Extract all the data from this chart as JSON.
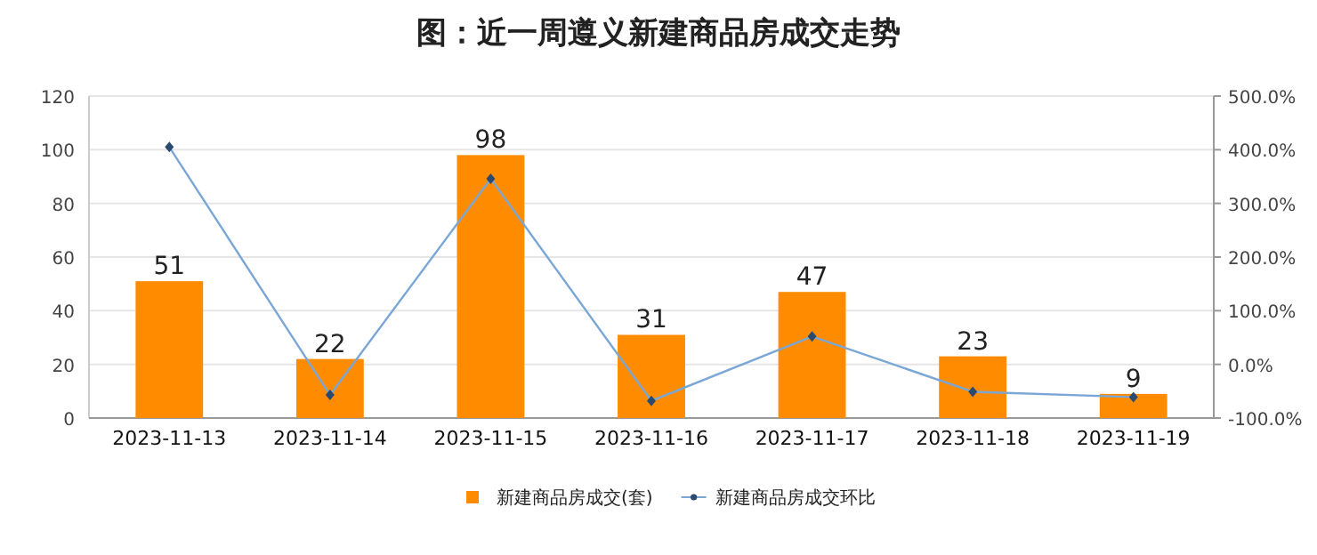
{
  "chart_data": {
    "type": "bar",
    "title": "图：近一周遵义新建商品房成交走势",
    "categories": [
      "2023-11-13",
      "2023-11-14",
      "2023-11-15",
      "2023-11-16",
      "2023-11-17",
      "2023-11-18",
      "2023-11-19"
    ],
    "series": [
      {
        "name": "新建商品房成交(套)",
        "color": "#ff8c00",
        "values": [
          51,
          22,
          98,
          31,
          47,
          23,
          9
        ],
        "value_labels": [
          "51",
          "22",
          "98",
          "31",
          "47",
          "23",
          "9"
        ]
      },
      {
        "name": "新建商品房成交环比",
        "type": "line",
        "axis": "y2",
        "color": "#7ba7d7",
        "marker": "diamond",
        "values": [
          405,
          -57,
          346,
          -68,
          52,
          -51,
          -61
        ]
      }
    ],
    "ylim": [
      0,
      120
    ],
    "yticks": [
      0,
      20,
      40,
      60,
      80,
      100,
      120
    ],
    "y2lim": [
      -100,
      500
    ],
    "y2ticks": [
      {
        "value": -100,
        "label": "-100.0%"
      },
      {
        "value": 0,
        "label": "0.0%"
      },
      {
        "value": 100,
        "label": "100.0%"
      },
      {
        "value": 200,
        "label": "200.0%"
      },
      {
        "value": 300,
        "label": "300.0%"
      },
      {
        "value": 400,
        "label": "400.0%"
      },
      {
        "value": 500,
        "label": "500.0%"
      }
    ],
    "grid": "y",
    "legend": "bottom"
  }
}
